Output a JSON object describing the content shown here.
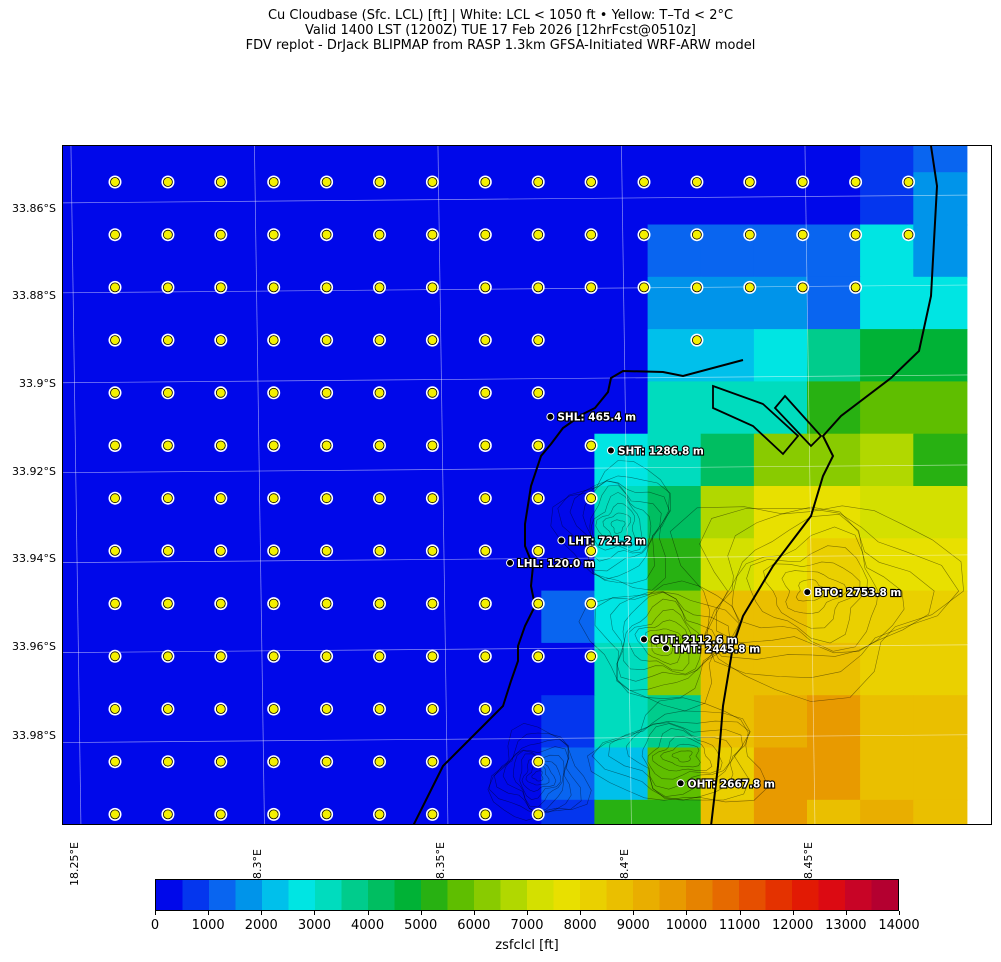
{
  "title": {
    "line1": "Cu Cloudbase (Sfc. LCL) [ft]  |  White: LCL < 1050 ft • Yellow: T–Td < 2°C",
    "line2": "Valid 1400 LST (1200Z) TUE 17 Feb 2026 [12hrFcst@0510z]",
    "line3": "FDV replot - DrJack BLIPMAP from RASP 1.3km GFSA-Initiated WRF-ARW model"
  },
  "axes": {
    "lat_labels": [
      "33.86°S",
      "33.88°S",
      "33.9°S",
      "33.92°S",
      "33.94°S",
      "33.96°S",
      "33.98°S"
    ],
    "lon_labels": [
      "18.25°E",
      "18.3°E",
      "18.35°E",
      "18.4°E",
      "18.45°E"
    ]
  },
  "colorbar": {
    "label": "zsfclcl [ft]",
    "tick_labels": [
      "0",
      "1000",
      "2000",
      "3000",
      "4000",
      "5000",
      "6000",
      "7000",
      "8000",
      "9000",
      "10000",
      "11000",
      "12000",
      "13000",
      "14000"
    ],
    "min": 0,
    "max": 14000,
    "step": 500,
    "colors": [
      "#0008ea",
      "#0436ee",
      "#0965f0",
      "#0094ea",
      "#00c0eb",
      "#00e5e3",
      "#00dcbe",
      "#00cc8c",
      "#00be61",
      "#00b236",
      "#28b112",
      "#5fbe00",
      "#89cb00",
      "#b1d800",
      "#d4e000",
      "#e8e000",
      "#ead000",
      "#eabf00",
      "#e9ae00",
      "#e89a00",
      "#e68300",
      "#e66a00",
      "#e64f00",
      "#e43200",
      "#e21a04",
      "#dc0a12",
      "#c80426",
      "#b40030"
    ]
  },
  "places": [
    {
      "name": "SHL: 465.4 m",
      "lat": -33.908,
      "lon": 18.379
    },
    {
      "name": "SHT: 1286.8 m",
      "lat": -33.9155,
      "lon": 18.3955
    },
    {
      "name": "LHT: 721.2 m",
      "lat": -33.9355,
      "lon": 18.382
    },
    {
      "name": "LHL: 120.0 m",
      "lat": -33.9405,
      "lon": 18.368
    },
    {
      "name": "BTO: 2753.8 m",
      "lat": -33.947,
      "lon": 18.449
    },
    {
      "name": "GUT: 2112.6 m",
      "lat": -33.9575,
      "lon": 18.4045
    },
    {
      "name": "TMT: 2445.8 m",
      "lat": -33.9595,
      "lon": 18.4105
    },
    {
      "name": "OHT: 2667.8 m",
      "lat": -33.9895,
      "lon": 18.4145
    }
  ],
  "grid_values_ft": [
    [
      0,
      0,
      0,
      0,
      0,
      0,
      0,
      0,
      0,
      0,
      0,
      0,
      0,
      0,
      0,
      800,
      1200
    ],
    [
      0,
      0,
      0,
      0,
      0,
      0,
      0,
      0,
      0,
      0,
      0,
      0,
      0,
      0,
      0,
      800,
      1600
    ],
    [
      0,
      0,
      0,
      0,
      0,
      0,
      0,
      0,
      0,
      0,
      0,
      1100,
      1100,
      1100,
      1200,
      2600,
      1600
    ],
    [
      0,
      0,
      0,
      0,
      0,
      0,
      0,
      0,
      0,
      0,
      0,
      1600,
      1600,
      1600,
      1100,
      2600,
      2800
    ],
    [
      0,
      0,
      0,
      0,
      0,
      0,
      0,
      0,
      0,
      0,
      0,
      2000,
      2000,
      2700,
      3600,
      4800,
      4800
    ],
    [
      0,
      0,
      0,
      0,
      0,
      0,
      0,
      0,
      0,
      300,
      0,
      3300,
      3300,
      3300,
      5000,
      5500,
      5500
    ],
    [
      0,
      0,
      0,
      0,
      0,
      0,
      0,
      0,
      0,
      0,
      2700,
      3400,
      4400,
      6200,
      6200,
      6600,
      5000
    ],
    [
      0,
      0,
      0,
      0,
      0,
      0,
      0,
      0,
      0,
      0,
      3000,
      4200,
      6600,
      7800,
      7800,
      7100,
      7400
    ],
    [
      0,
      0,
      0,
      0,
      0,
      0,
      0,
      0,
      0,
      0,
      2900,
      5200,
      7000,
      7900,
      8000,
      7600,
      7800
    ],
    [
      0,
      0,
      0,
      0,
      0,
      0,
      0,
      0,
      0,
      1200,
      2700,
      6400,
      8600,
      8600,
      8300,
      8300,
      8200
    ],
    [
      0,
      0,
      0,
      0,
      0,
      0,
      0,
      0,
      0,
      0,
      3000,
      6000,
      8700,
      8700,
      8600,
      8400,
      8400
    ],
    [
      0,
      0,
      0,
      0,
      0,
      0,
      0,
      0,
      0,
      900,
      3200,
      3900,
      8700,
      9300,
      9600,
      8700,
      8800
    ],
    [
      0,
      0,
      0,
      0,
      0,
      0,
      0,
      0,
      0,
      1000,
      2200,
      5800,
      8300,
      9500,
      9600,
      8800,
      8800
    ],
    [
      0,
      0,
      0,
      0,
      0,
      0,
      0,
      0,
      0,
      700,
      5000,
      5400,
      8800,
      9800,
      8800,
      9000,
      8900
    ]
  ],
  "markers": {
    "rows": [
      "T",
      "T",
      "T",
      "T",
      "T",
      "T",
      "T",
      "T",
      "T",
      "T",
      "T",
      "T",
      "T"
    ],
    "layout_note_free": true
  }
}
